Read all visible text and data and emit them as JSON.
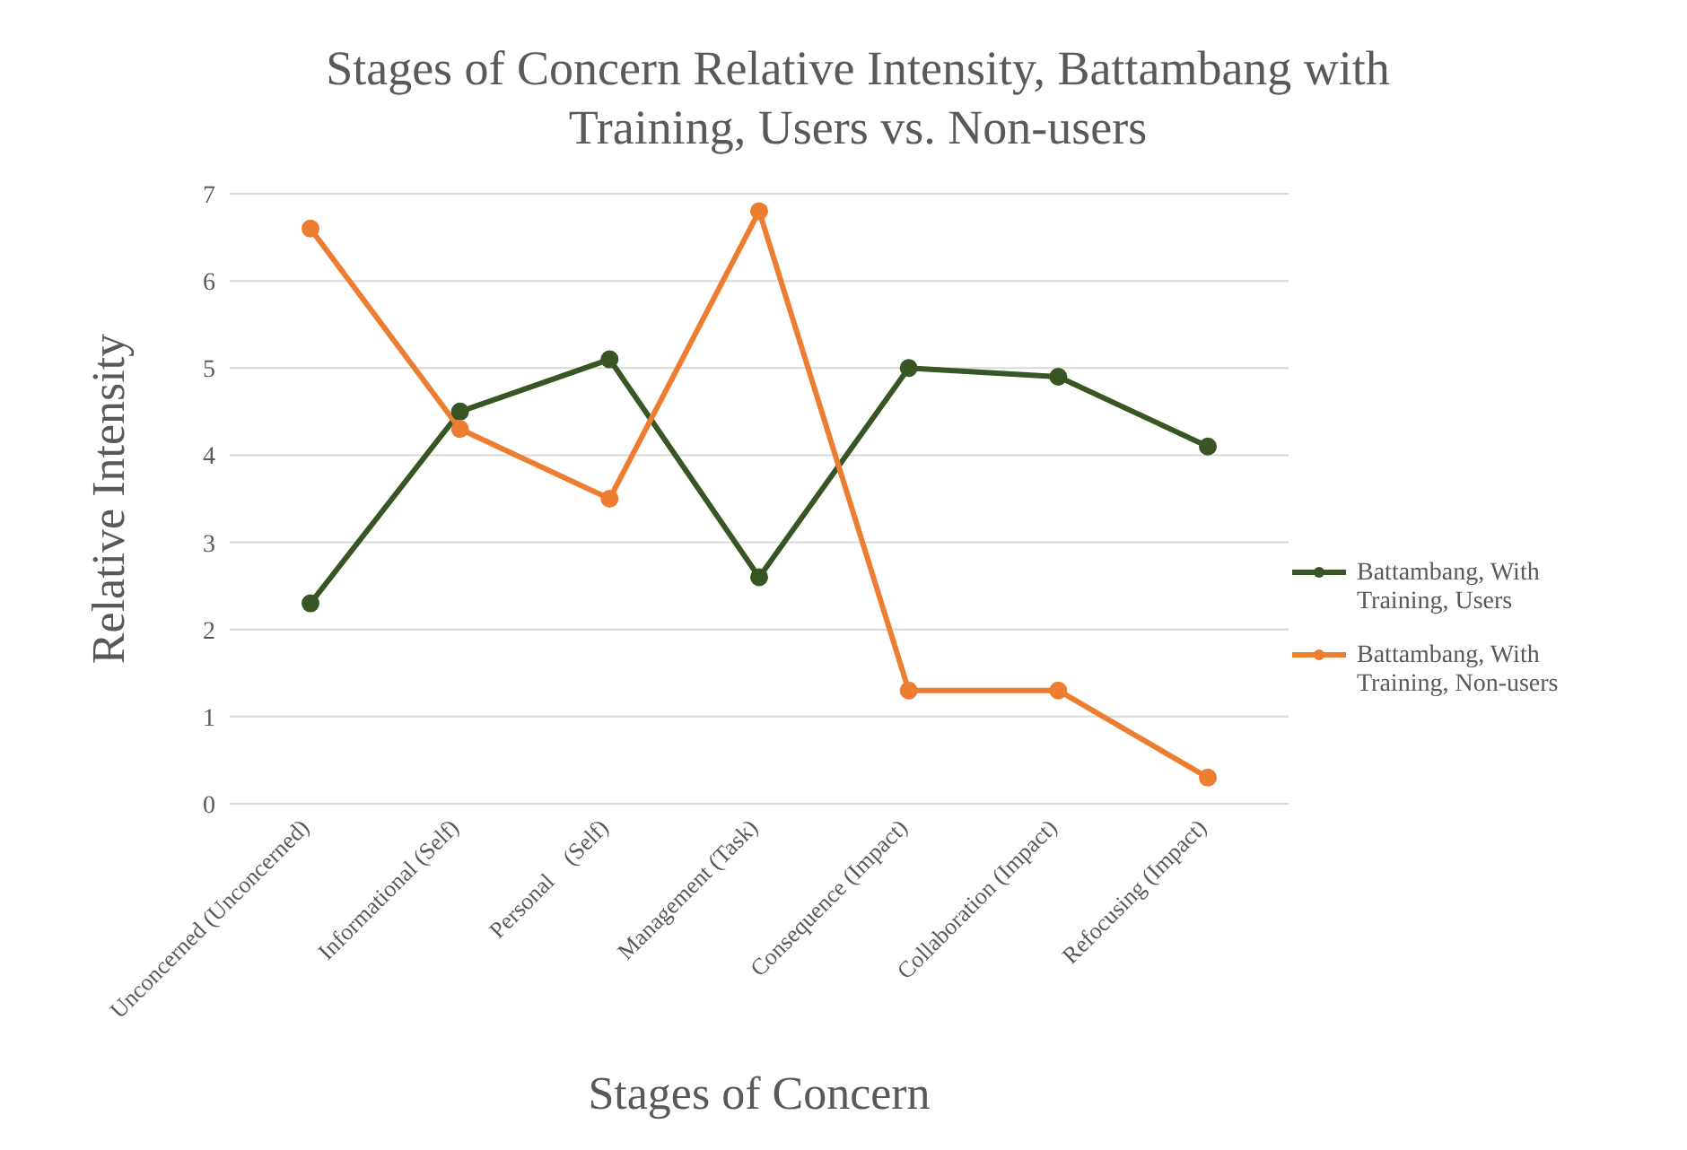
{
  "chart_data": {
    "type": "line",
    "title": "Stages of Concern Relative Intensity, Battambang with Training, Users vs. Non-users",
    "xlabel": "Stages of Concern",
    "ylabel": "Relative Intensity",
    "categories": [
      "Unconcerned (Unconcerned)",
      "Informational (Self)",
      "Personal    (Self)",
      "Management (Task)",
      "Consequence (Impact)",
      "Collaboration (Impact)",
      "Refocusing (Impact)"
    ],
    "series": [
      {
        "name": "Battambang, With Training, Users",
        "color": "#375623",
        "values": [
          2.3,
          4.5,
          5.1,
          2.6,
          5.0,
          4.9,
          4.1
        ]
      },
      {
        "name": "Battambang, With Training, Non-users",
        "color": "#ed7d31",
        "values": [
          6.6,
          4.3,
          3.5,
          6.8,
          1.3,
          1.3,
          0.3
        ]
      }
    ],
    "ylim": [
      0,
      7
    ],
    "yticks": [
      0,
      1,
      2,
      3,
      4,
      5,
      6,
      7
    ],
    "grid": "y",
    "legend": "right",
    "marker": "circle",
    "line_style": "solid"
  }
}
